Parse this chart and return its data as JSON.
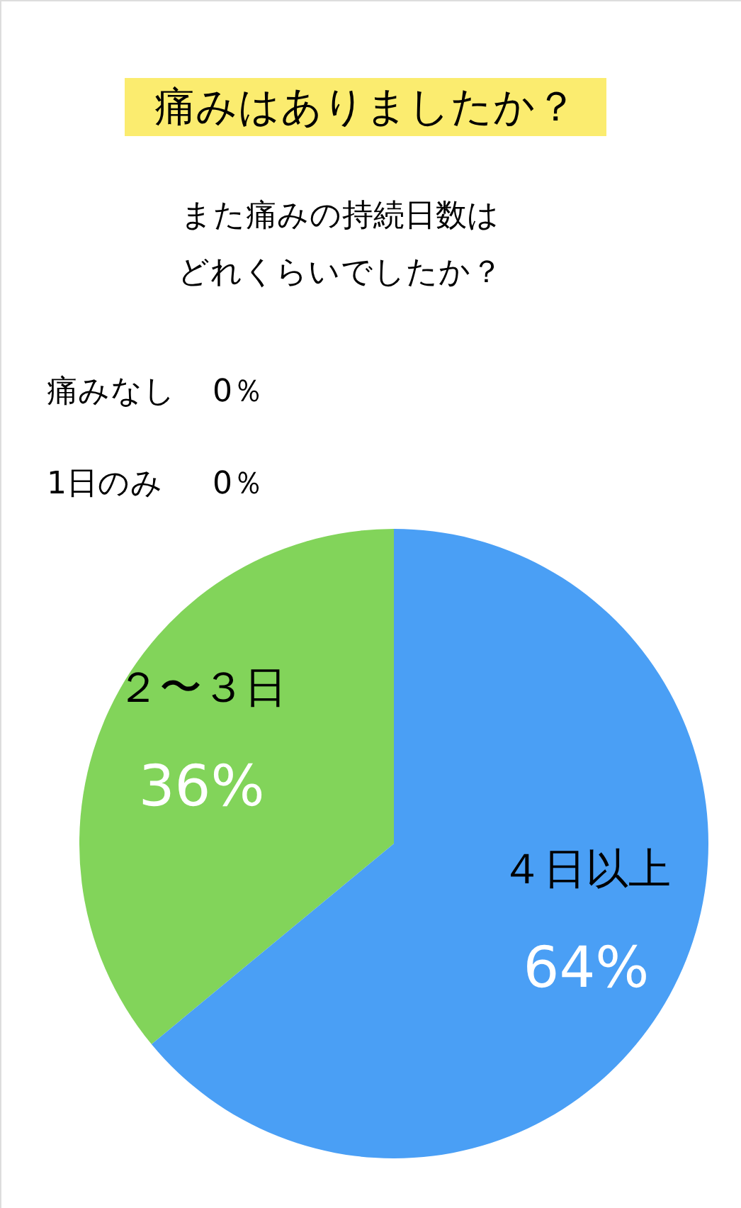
{
  "chart_data": {
    "type": "pie",
    "title": "痛みはありましたか？",
    "subtitle": "また痛みの持続日数はどれくらいでしたか？",
    "categories": [
      "痛みなし",
      "1日のみ",
      "２〜３日",
      "４日以上"
    ],
    "values": [
      0,
      0,
      36,
      64
    ],
    "value_labels": [
      "0％",
      "0％",
      "36%",
      "64%"
    ],
    "colors": [
      null,
      null,
      "#82d45a",
      "#4a9ff5"
    ]
  }
}
